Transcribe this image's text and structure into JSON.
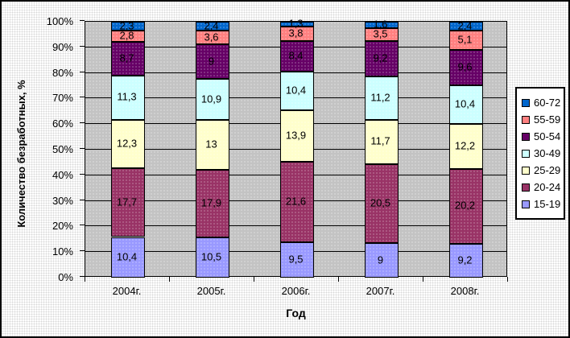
{
  "chart_data": {
    "type": "bar",
    "variant": "stacked-100-percent",
    "title": "",
    "xlabel": "Год",
    "ylabel": "Количество безработных, %",
    "categories": [
      "2004г.",
      "2005г.",
      "2006г.",
      "2007г.",
      "2008г."
    ],
    "series": [
      {
        "name": "15-19",
        "color": "#9999FF",
        "values": [
          10.4,
          10.5,
          9.5,
          9,
          9.2
        ]
      },
      {
        "name": "20-24",
        "color": "#993366",
        "values": [
          17.7,
          17.9,
          21.6,
          20.5,
          20.2
        ]
      },
      {
        "name": "25-29",
        "color": "#FFFFCC",
        "values": [
          12.3,
          13,
          13.9,
          11.7,
          12.2
        ]
      },
      {
        "name": "30-49",
        "color": "#CCFFFF",
        "values": [
          11.3,
          10.9,
          10.4,
          11.2,
          10.4
        ]
      },
      {
        "name": "50-54",
        "color": "#660066",
        "values": [
          8.7,
          9,
          8.4,
          9.2,
          9.6
        ]
      },
      {
        "name": "55-59",
        "color": "#FF8080",
        "values": [
          2.8,
          3.6,
          3.8,
          3.5,
          5.1
        ]
      },
      {
        "name": "60-72",
        "color": "#0066CC",
        "values": [
          2.3,
          2.4,
          1.3,
          1.6,
          2.4
        ]
      }
    ],
    "y_ticks": [
      "0%",
      "10%",
      "20%",
      "30%",
      "40%",
      "50%",
      "60%",
      "70%",
      "80%",
      "90%",
      "100%"
    ],
    "ylim": [
      0,
      100
    ],
    "grid": true,
    "legend_position": "right",
    "legend_order_top_to_bottom": [
      "60-72",
      "55-59",
      "50-54",
      "30-49",
      "25-29",
      "20-24",
      "15-19"
    ],
    "decimal_separator": ",",
    "plot_background": "#C0C0C0",
    "outer_border_color": "#000000"
  }
}
